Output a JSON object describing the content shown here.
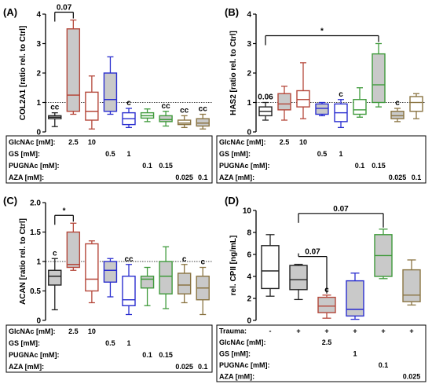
{
  "colors": {
    "black": "#222222",
    "red": "#b5473a",
    "blue": "#2a2ecf",
    "green": "#3f9a3b",
    "tan": "#8a7442",
    "box_fill": "#c9c9c9"
  },
  "chart_data": [
    {
      "panel": "(A)",
      "type": "box",
      "ylabel": "COL2A1 [ratio rel. to Ctrl]",
      "ylim": [
        0,
        4
      ],
      "yticks": [
        "0",
        "1",
        "2",
        "3",
        "4"
      ],
      "ref_line": 1,
      "boxes": [
        {
          "color": "black",
          "fill": "#ffffff",
          "min": 0.18,
          "q1": 0.45,
          "median": 0.5,
          "q3": 0.55,
          "max": 0.65,
          "label": "cc"
        },
        {
          "color": "red",
          "fill": "#c9c9c9",
          "min": 0.6,
          "q1": 0.7,
          "median": 1.25,
          "q3": 3.5,
          "max": 3.8,
          "label": ""
        },
        {
          "color": "red",
          "fill": "#ffffff",
          "min": 0.1,
          "q1": 0.4,
          "median": 0.7,
          "q3": 1.35,
          "max": 1.9,
          "label": ""
        },
        {
          "color": "blue",
          "fill": "#c9c9c9",
          "min": 0.6,
          "q1": 0.7,
          "median": 1.1,
          "q3": 2.0,
          "max": 2.55,
          "label": ""
        },
        {
          "color": "blue",
          "fill": "#ffffff",
          "min": 0.15,
          "q1": 0.25,
          "median": 0.45,
          "q3": 0.65,
          "max": 0.8,
          "label": "c"
        },
        {
          "color": "green",
          "fill": "#ffffff",
          "min": 0.35,
          "q1": 0.47,
          "median": 0.55,
          "q3": 0.65,
          "max": 0.78,
          "label": ""
        },
        {
          "color": "green",
          "fill": "#c9c9c9",
          "min": 0.2,
          "q1": 0.35,
          "median": 0.42,
          "q3": 0.55,
          "max": 0.7,
          "label": "cc"
        },
        {
          "color": "tan",
          "fill": "#ffffff",
          "min": 0.15,
          "q1": 0.25,
          "median": 0.3,
          "q3": 0.4,
          "max": 0.55,
          "label": "cc"
        },
        {
          "color": "tan",
          "fill": "#c9c9c9",
          "min": 0.1,
          "q1": 0.2,
          "median": 0.3,
          "q3": 0.45,
          "max": 0.6,
          "label": "cc"
        }
      ],
      "annotations": [
        {
          "text": "0.07",
          "from": 0,
          "to": 1
        }
      ]
    },
    {
      "panel": "(B)",
      "type": "box",
      "ylabel": "HAS2 [ratio rel. to Ctrl]",
      "ylim": [
        0,
        4
      ],
      "yticks": [
        "0",
        "1",
        "2",
        "3",
        "4"
      ],
      "ref_line": 1,
      "boxes": [
        {
          "color": "black",
          "fill": "#ffffff",
          "min": 0.4,
          "q1": 0.55,
          "median": 0.7,
          "q3": 0.85,
          "max": 1.0,
          "label": "0.06"
        },
        {
          "color": "red",
          "fill": "#c9c9c9",
          "min": 0.4,
          "q1": 0.75,
          "median": 0.95,
          "q3": 1.3,
          "max": 1.55,
          "label": ""
        },
        {
          "color": "red",
          "fill": "#ffffff",
          "min": 0.45,
          "q1": 0.85,
          "median": 1.1,
          "q3": 1.4,
          "max": 2.35,
          "label": ""
        },
        {
          "color": "blue",
          "fill": "#c9c9c9",
          "min": 0.55,
          "q1": 0.6,
          "median": 0.8,
          "q3": 0.95,
          "max": 1.0,
          "label": ""
        },
        {
          "color": "blue",
          "fill": "#ffffff",
          "min": 0.15,
          "q1": 0.35,
          "median": 0.65,
          "q3": 0.95,
          "max": 1.1,
          "label": "c"
        },
        {
          "color": "green",
          "fill": "#ffffff",
          "min": 0.5,
          "q1": 0.6,
          "median": 0.75,
          "q3": 1.1,
          "max": 1.5,
          "label": ""
        },
        {
          "color": "green",
          "fill": "#c9c9c9",
          "min": 0.85,
          "q1": 1.0,
          "median": 1.6,
          "q3": 2.65,
          "max": 3.0,
          "label": ""
        },
        {
          "color": "tan",
          "fill": "#c9c9c9",
          "min": 0.35,
          "q1": 0.45,
          "median": 0.55,
          "q3": 0.7,
          "max": 0.8,
          "label": "c"
        },
        {
          "color": "tan",
          "fill": "#ffffff",
          "min": 0.45,
          "q1": 0.7,
          "median": 1.0,
          "q3": 1.2,
          "max": 1.3,
          "label": ""
        }
      ],
      "annotations": [
        {
          "text": "*",
          "from": 0,
          "to": 6
        }
      ]
    },
    {
      "panel": "(C)",
      "type": "box",
      "ylabel": "ACAN [ratio rel. to Ctrl]",
      "ylim": [
        0,
        2
      ],
      "yticks": [
        "0",
        "0.5",
        "1",
        "1.5",
        "2.0"
      ],
      "ref_line": 1,
      "boxes": [
        {
          "color": "black",
          "fill": "#c9c9c9",
          "min": 0.18,
          "q1": 0.6,
          "median": 0.75,
          "q3": 0.85,
          "max": 1.05,
          "label": "c"
        },
        {
          "color": "red",
          "fill": "#c9c9c9",
          "min": 0.85,
          "q1": 0.9,
          "median": 0.95,
          "q3": 1.5,
          "max": 1.65,
          "label": ""
        },
        {
          "color": "red",
          "fill": "#ffffff",
          "min": 0.3,
          "q1": 0.5,
          "median": 0.7,
          "q3": 1.3,
          "max": 1.35,
          "label": ""
        },
        {
          "color": "blue",
          "fill": "#c9c9c9",
          "min": 0.4,
          "q1": 0.65,
          "median": 0.85,
          "q3": 1.0,
          "max": 1.05,
          "label": ""
        },
        {
          "color": "blue",
          "fill": "#ffffff",
          "min": 0.1,
          "q1": 0.25,
          "median": 0.35,
          "q3": 0.75,
          "max": 0.95,
          "label": "cc"
        },
        {
          "color": "green",
          "fill": "#c9c9c9",
          "min": 0.25,
          "q1": 0.55,
          "median": 0.7,
          "q3": 0.75,
          "max": 0.9,
          "label": ""
        },
        {
          "color": "green",
          "fill": "#c9c9c9",
          "min": 0.2,
          "q1": 0.45,
          "median": 0.75,
          "q3": 1.0,
          "max": 1.25,
          "label": ""
        },
        {
          "color": "tan",
          "fill": "#c9c9c9",
          "min": 0.3,
          "q1": 0.45,
          "median": 0.6,
          "q3": 0.8,
          "max": 0.95,
          "label": "c"
        },
        {
          "color": "tan",
          "fill": "#c9c9c9",
          "min": 0.1,
          "q1": 0.35,
          "median": 0.55,
          "q3": 0.75,
          "max": 0.9,
          "label": "c"
        }
      ],
      "annotations": [
        {
          "text": "*",
          "from": 0,
          "to": 1
        }
      ]
    },
    {
      "panel": "(D)",
      "type": "box",
      "ylabel": "rel. CPII [ng/mL]",
      "ylim": [
        0,
        10
      ],
      "yticks": [
        "0",
        "2",
        "4",
        "6",
        "8",
        "10"
      ],
      "boxes": [
        {
          "color": "black",
          "fill": "#ffffff",
          "min": 2.2,
          "q1": 2.9,
          "median": 4.5,
          "q3": 6.8,
          "max": 7.8,
          "label": ""
        },
        {
          "color": "black",
          "fill": "#c9c9c9",
          "min": 1.9,
          "q1": 2.8,
          "median": 3.7,
          "q3": 5.0,
          "max": 5.1,
          "label": ""
        },
        {
          "color": "red",
          "fill": "#c9c9c9",
          "min": 0.2,
          "q1": 0.7,
          "median": 1.3,
          "q3": 2.1,
          "max": 2.3,
          "label": "c"
        },
        {
          "color": "blue",
          "fill": "#c9c9c9",
          "min": 0.1,
          "q1": 0.4,
          "median": 1.0,
          "q3": 3.6,
          "max": 4.3,
          "label": ""
        },
        {
          "color": "green",
          "fill": "#c9c9c9",
          "min": 3.8,
          "q1": 4.0,
          "median": 5.9,
          "q3": 7.8,
          "max": 8.3,
          "label": ""
        },
        {
          "color": "tan",
          "fill": "#c9c9c9",
          "min": 1.4,
          "q1": 1.7,
          "median": 2.3,
          "q3": 4.6,
          "max": 5.5,
          "label": ""
        }
      ],
      "annotations": [
        {
          "text": "0.07",
          "from": 1,
          "to": 2
        },
        {
          "text": "0.07",
          "from": 1,
          "to": 4
        }
      ]
    }
  ],
  "treatment_tables": [
    {
      "rows": [
        {
          "label": "GlcNAc [mM]:",
          "cells": [
            {
              "col": 1,
              "text": "2.5"
            },
            {
              "col": 2,
              "text": "10"
            }
          ]
        },
        {
          "label": "GS [mM]:",
          "cells": [
            {
              "col": 3,
              "text": "0.5"
            },
            {
              "col": 4,
              "text": "1"
            }
          ]
        },
        {
          "label": "PUGNAc [mM]:",
          "cells": [
            {
              "col": 5,
              "text": "0.1"
            },
            {
              "col": 6,
              "text": "0.15"
            }
          ]
        },
        {
          "label": "AZA [mM]:",
          "cells": [
            {
              "col": 7,
              "text": "0.025"
            },
            {
              "col": 8,
              "text": "0.1"
            }
          ]
        }
      ]
    },
    {
      "rows": [
        {
          "label": "GlcNAc [mM]:",
          "cells": [
            {
              "col": 1,
              "text": "2.5"
            },
            {
              "col": 2,
              "text": "10"
            }
          ]
        },
        {
          "label": "GS [mM]:",
          "cells": [
            {
              "col": 3,
              "text": "0.5"
            },
            {
              "col": 4,
              "text": "1"
            }
          ]
        },
        {
          "label": "PUGNAc [mM]:",
          "cells": [
            {
              "col": 5,
              "text": "0.1"
            },
            {
              "col": 6,
              "text": "0.15"
            }
          ]
        },
        {
          "label": "AZA [mM]:",
          "cells": [
            {
              "col": 7,
              "text": "0.025"
            },
            {
              "col": 8,
              "text": "0.1"
            }
          ]
        }
      ]
    },
    {
      "rows": [
        {
          "label": "GlcNAc [mM]:",
          "cells": [
            {
              "col": 1,
              "text": "2.5"
            },
            {
              "col": 2,
              "text": "10"
            }
          ]
        },
        {
          "label": "GS [mM]:",
          "cells": [
            {
              "col": 3,
              "text": "0.5"
            },
            {
              "col": 4,
              "text": "1"
            }
          ]
        },
        {
          "label": "PUGNAc [mM]:",
          "cells": [
            {
              "col": 5,
              "text": "0.1"
            },
            {
              "col": 6,
              "text": "0.15"
            }
          ]
        },
        {
          "label": "AZA [mM]:",
          "cells": [
            {
              "col": 7,
              "text": "0.025"
            },
            {
              "col": 8,
              "text": "0.1"
            }
          ]
        }
      ]
    },
    {
      "rows": [
        {
          "label": "Trauma:",
          "cells": [
            {
              "col": 0,
              "text": "-"
            },
            {
              "col": 1,
              "text": "+"
            },
            {
              "col": 2,
              "text": "+"
            },
            {
              "col": 3,
              "text": "+"
            },
            {
              "col": 4,
              "text": "+"
            },
            {
              "col": 5,
              "text": "+"
            }
          ]
        },
        {
          "label": "GlcNAc [mM]:",
          "cells": [
            {
              "col": 2,
              "text": "2.5"
            }
          ]
        },
        {
          "label": "GS [mM]:",
          "cells": [
            {
              "col": 3,
              "text": "1"
            }
          ]
        },
        {
          "label": "PUGNAc [mM]:",
          "cells": [
            {
              "col": 4,
              "text": "0.1"
            }
          ]
        },
        {
          "label": "AZA [mM]:",
          "cells": [
            {
              "col": 5,
              "text": "0.025"
            }
          ]
        }
      ]
    }
  ]
}
